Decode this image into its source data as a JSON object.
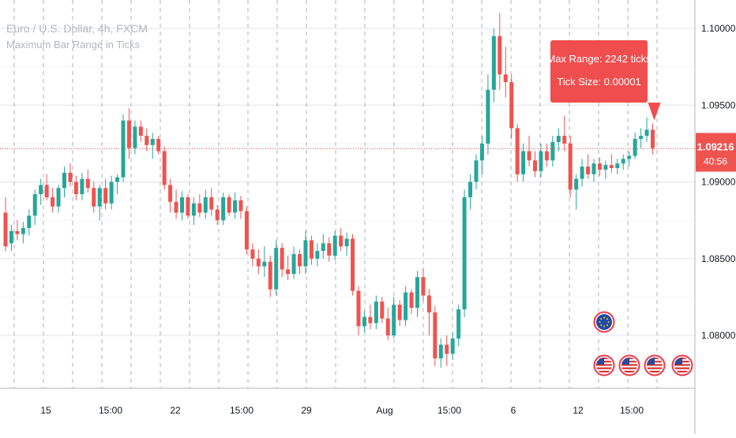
{
  "header": {
    "symbol_title": "Euro / U.S. Dollar, 4h, FXCM",
    "indicator_name": "Maximum Bar Range in Ticks"
  },
  "callout": {
    "line1": "Max Range: 2242 ticks",
    "line2": "Tick Size: 0.00001"
  },
  "last_price": {
    "value": "1.09216",
    "countdown": "40:56"
  },
  "colors": {
    "up": "#26a69a",
    "down": "#ef5350",
    "callout_bg": "#f04e4e",
    "grid": "#e0e3eb",
    "session_line": "#9598a1"
  },
  "event_icons": [
    "eu-flag-icon",
    "us-flag-icon",
    "us-flag-icon",
    "us-flag-icon",
    "us-flag-icon"
  ],
  "chart_data": {
    "type": "candlestick",
    "title": "Euro / U.S. Dollar, 4h, FXCM",
    "ylim": [
      1.0775,
      1.1018
    ],
    "y_ticks": [
      "1.10000",
      "1.09500",
      "1.09000",
      "1.08500",
      "1.08000"
    ],
    "x_tick_labels": [
      "15",
      "15:00",
      "22",
      "15:00",
      "29",
      "Aug",
      "15:00",
      "6",
      "12",
      "15:00"
    ],
    "grid": true,
    "candles": [
      [
        1.088,
        1.089,
        1.0855,
        1.0858
      ],
      [
        1.086,
        1.0872,
        1.0855,
        1.0868
      ],
      [
        1.0868,
        1.0875,
        1.0862,
        1.0866
      ],
      [
        1.0866,
        1.0874,
        1.086,
        1.087
      ],
      [
        1.087,
        1.0882,
        1.0865,
        1.0878
      ],
      [
        1.0878,
        1.0895,
        1.0872,
        1.0892
      ],
      [
        1.0892,
        1.0902,
        1.0885,
        1.0898
      ],
      [
        1.0898,
        1.0905,
        1.0888,
        1.089
      ],
      [
        1.089,
        1.0896,
        1.088,
        1.0884
      ],
      [
        1.0884,
        1.0898,
        1.088,
        1.0896
      ],
      [
        1.0896,
        1.091,
        1.089,
        1.0906
      ],
      [
        1.0906,
        1.0912,
        1.0897,
        1.09
      ],
      [
        1.09,
        1.0904,
        1.0888,
        1.0892
      ],
      [
        1.0892,
        1.0906,
        1.0888,
        1.0902
      ],
      [
        1.0902,
        1.0908,
        1.0893,
        1.0896
      ],
      [
        1.0896,
        1.09,
        1.088,
        1.0884
      ],
      [
        1.0884,
        1.0898,
        1.0875,
        1.0896
      ],
      [
        1.0896,
        1.0902,
        1.0882,
        1.0886
      ],
      [
        1.0886,
        1.0904,
        1.0882,
        1.09
      ],
      [
        1.09,
        1.0905,
        1.0892,
        1.0903
      ],
      [
        1.0903,
        1.0944,
        1.09,
        1.094
      ],
      [
        1.094,
        1.0948,
        1.0915,
        1.0922
      ],
      [
        1.0922,
        1.094,
        1.0918,
        1.0936
      ],
      [
        1.0936,
        1.094,
        1.0926,
        1.093
      ],
      [
        1.093,
        1.0935,
        1.092,
        1.0924
      ],
      [
        1.0924,
        1.0932,
        1.0915,
        1.0928
      ],
      [
        1.0928,
        1.093,
        1.0918,
        1.092
      ],
      [
        1.092,
        1.0923,
        1.0895,
        1.0898
      ],
      [
        1.0898,
        1.0902,
        1.088,
        1.0887
      ],
      [
        1.0887,
        1.0895,
        1.0876,
        1.088
      ],
      [
        1.088,
        1.0894,
        1.0875,
        1.089
      ],
      [
        1.089,
        1.0892,
        1.0876,
        1.0878
      ],
      [
        1.0878,
        1.089,
        1.0872,
        1.0886
      ],
      [
        1.0886,
        1.0892,
        1.0877,
        1.088
      ],
      [
        1.088,
        1.0895,
        1.0876,
        1.089
      ],
      [
        1.089,
        1.0896,
        1.0878,
        1.0882
      ],
      [
        1.0882,
        1.0885,
        1.0872,
        1.0875
      ],
      [
        1.0875,
        1.0893,
        1.0872,
        1.089
      ],
      [
        1.089,
        1.0892,
        1.0878,
        1.088
      ],
      [
        1.088,
        1.0893,
        1.0876,
        1.0888
      ],
      [
        1.0888,
        1.0891,
        1.0876,
        1.0881
      ],
      [
        1.0881,
        1.0884,
        1.0853,
        1.0856
      ],
      [
        1.0856,
        1.086,
        1.0845,
        1.085
      ],
      [
        1.085,
        1.0856,
        1.084,
        1.0845
      ],
      [
        1.0845,
        1.0858,
        1.0838,
        1.0848
      ],
      [
        1.0848,
        1.0852,
        1.0825,
        1.083
      ],
      [
        1.083,
        1.0862,
        1.0826,
        1.0857
      ],
      [
        1.0857,
        1.086,
        1.0838,
        1.0843
      ],
      [
        1.0843,
        1.0852,
        1.0836,
        1.084
      ],
      [
        1.084,
        1.0858,
        1.0837,
        1.0853
      ],
      [
        1.0853,
        1.0856,
        1.084,
        1.0845
      ],
      [
        1.0845,
        1.0868,
        1.084,
        1.0862
      ],
      [
        1.0862,
        1.0865,
        1.0846,
        1.085
      ],
      [
        1.085,
        1.086,
        1.0845,
        1.0855
      ],
      [
        1.0855,
        1.0866,
        1.085,
        1.086
      ],
      [
        1.086,
        1.0864,
        1.0848,
        1.0852
      ],
      [
        1.0852,
        1.0868,
        1.0849,
        1.0865
      ],
      [
        1.0865,
        1.087,
        1.0855,
        1.0858
      ],
      [
        1.0858,
        1.0867,
        1.0852,
        1.0863
      ],
      [
        1.0863,
        1.0866,
        1.0826,
        1.0829
      ],
      [
        1.0829,
        1.0832,
        1.08,
        1.0806
      ],
      [
        1.0806,
        1.0816,
        1.0802,
        1.0812
      ],
      [
        1.0812,
        1.082,
        1.0804,
        1.0808
      ],
      [
        1.0808,
        1.0826,
        1.0804,
        1.0822
      ],
      [
        1.0822,
        1.0825,
        1.0808,
        1.0811
      ],
      [
        1.0811,
        1.0818,
        1.0797,
        1.08
      ],
      [
        1.08,
        1.0825,
        1.0798,
        1.082
      ],
      [
        1.082,
        1.0823,
        1.0806,
        1.081
      ],
      [
        1.081,
        1.0832,
        1.0806,
        1.0828
      ],
      [
        1.0828,
        1.083,
        1.0814,
        1.0818
      ],
      [
        1.0818,
        1.0842,
        1.0812,
        1.0838
      ],
      [
        1.0838,
        1.0844,
        1.0822,
        1.0826
      ],
      [
        1.0826,
        1.083,
        1.08,
        1.0815
      ],
      [
        1.0815,
        1.0819,
        1.078,
        1.0785
      ],
      [
        1.0785,
        1.0798,
        1.0779,
        1.0794
      ],
      [
        1.0794,
        1.08,
        1.078,
        1.0788
      ],
      [
        1.0788,
        1.0802,
        1.0784,
        1.0798
      ],
      [
        1.0798,
        1.082,
        1.0793,
        1.0817
      ],
      [
        1.0817,
        1.0895,
        1.0812,
        1.089
      ],
      [
        1.089,
        1.0905,
        1.0882,
        1.09
      ],
      [
        1.09,
        1.0918,
        1.0895,
        1.0914
      ],
      [
        1.0914,
        1.093,
        1.0905,
        1.0925
      ],
      [
        1.0925,
        1.097,
        1.0918,
        1.096
      ],
      [
        1.096,
        1.1,
        1.0952,
        1.0995
      ],
      [
        1.0995,
        1.101,
        1.096,
        1.097
      ],
      [
        1.097,
        1.0988,
        1.0955,
        1.0965
      ],
      [
        1.0965,
        1.097,
        1.0928,
        1.0935
      ],
      [
        1.0935,
        1.0938,
        1.09,
        1.0905
      ],
      [
        1.0905,
        1.0925,
        1.09,
        1.092
      ],
      [
        1.092,
        1.093,
        1.091,
        1.0914
      ],
      [
        1.0914,
        1.092,
        1.0903,
        1.0907
      ],
      [
        1.0907,
        1.0925,
        1.0903,
        1.092
      ],
      [
        1.092,
        1.0925,
        1.091,
        1.0914
      ],
      [
        1.0914,
        1.093,
        1.091,
        1.0926
      ],
      [
        1.0926,
        1.0935,
        1.092,
        1.093
      ],
      [
        1.093,
        1.0943,
        1.092,
        1.0925
      ],
      [
        1.0925,
        1.093,
        1.089,
        1.0895
      ],
      [
        1.0895,
        1.0905,
        1.0882,
        1.0902
      ],
      [
        1.0902,
        1.0915,
        1.0897,
        1.091
      ],
      [
        1.091,
        1.0918,
        1.0902,
        1.0905
      ],
      [
        1.0905,
        1.0915,
        1.09,
        1.0912
      ],
      [
        1.0912,
        1.0916,
        1.0904,
        1.0908
      ],
      [
        1.0908,
        1.0914,
        1.0902,
        1.0911
      ],
      [
        1.0911,
        1.0918,
        1.0906,
        1.0909
      ],
      [
        1.0909,
        1.0915,
        1.0905,
        1.0912
      ],
      [
        1.0912,
        1.0918,
        1.0908,
        1.0915
      ],
      [
        1.0915,
        1.092,
        1.091,
        1.0917
      ],
      [
        1.0917,
        1.0932,
        1.0915,
        1.0928
      ],
      [
        1.0928,
        1.0935,
        1.0922,
        1.093
      ],
      [
        1.093,
        1.0942,
        1.0926,
        1.0934
      ],
      [
        1.0934,
        1.0938,
        1.0918,
        1.0922
      ]
    ]
  }
}
